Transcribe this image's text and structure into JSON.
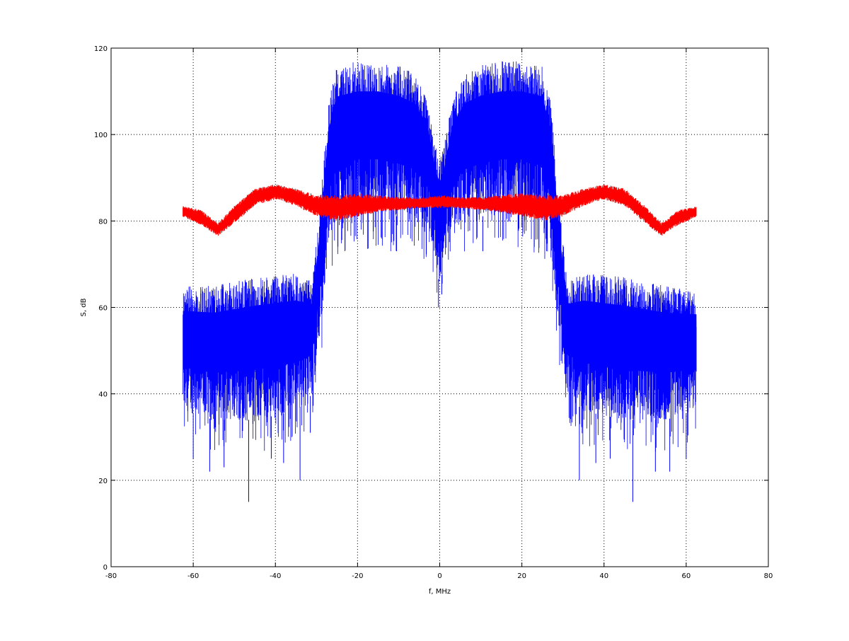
{
  "chart_data": {
    "type": "line",
    "title": "",
    "xlabel": "f, MHz",
    "ylabel": "S, dB",
    "xlim": [
      -80,
      80
    ],
    "ylim": [
      0,
      120
    ],
    "x_ticks": [
      -80,
      -60,
      -40,
      -20,
      0,
      20,
      40,
      60,
      80
    ],
    "y_ticks": [
      0,
      20,
      40,
      60,
      80,
      100,
      120
    ],
    "grid": true,
    "grid_style": "dotted",
    "legend": "none",
    "x_range_of_data": [
      -62.5,
      62.5
    ],
    "series": [
      {
        "color": "#0000ff",
        "style": "dense noisy spectrum",
        "envelope": {
          "x": [
            -62.5,
            -55,
            -45,
            -35,
            -31,
            -29,
            -27,
            -25,
            -20,
            -15,
            -10,
            -6,
            -3,
            -1,
            0,
            1,
            3,
            6,
            10,
            15,
            20,
            25,
            27,
            29,
            31,
            35,
            45,
            55,
            62.5
          ],
          "upper": [
            65,
            65,
            67,
            68,
            66,
            85,
            108,
            116,
            117,
            117,
            116,
            114,
            108,
            97,
            95,
            97,
            108,
            114,
            116,
            117,
            117,
            116,
            108,
            85,
            66,
            68,
            67,
            65,
            64
          ],
          "lower": [
            36,
            34,
            34,
            36,
            40,
            55,
            75,
            80,
            82,
            82,
            81,
            80,
            78,
            70,
            65,
            70,
            78,
            80,
            81,
            82,
            82,
            80,
            75,
            55,
            40,
            36,
            34,
            34,
            36
          ]
        },
        "spikes": [
          {
            "x": -60.0,
            "y": 25
          },
          {
            "x": -56.0,
            "y": 22
          },
          {
            "x": -52.5,
            "y": 23
          },
          {
            "x": -46.5,
            "y": 15
          },
          {
            "x": -41.0,
            "y": 25
          },
          {
            "x": -38.0,
            "y": 24
          },
          {
            "x": -34.0,
            "y": 20
          },
          {
            "x": -31.5,
            "y": 31
          },
          {
            "x": -10.5,
            "y": 73
          },
          {
            "x": -0.3,
            "y": 60
          },
          {
            "x": 0.5,
            "y": 63
          },
          {
            "x": 10.5,
            "y": 73
          },
          {
            "x": 34.0,
            "y": 20
          },
          {
            "x": 38.0,
            "y": 24
          },
          {
            "x": 41.5,
            "y": 25
          },
          {
            "x": 47.0,
            "y": 15
          },
          {
            "x": 52.5,
            "y": 22
          },
          {
            "x": 56.0,
            "y": 22
          },
          {
            "x": 60.0,
            "y": 25
          }
        ]
      },
      {
        "color": "#ff0000",
        "style": "noisy band",
        "envelope": {
          "x": [
            -62.5,
            -58,
            -54,
            -50,
            -45,
            -40,
            -35,
            -30,
            -25,
            -20,
            -15,
            -10,
            -5,
            0,
            5,
            10,
            15,
            20,
            25,
            30,
            35,
            40,
            45,
            50,
            54,
            58,
            62.5
          ],
          "upper": [
            83.5,
            82.5,
            79.5,
            83.5,
            87.5,
            88.5,
            87.5,
            86.0,
            86.0,
            86.5,
            86.0,
            85.5,
            85.5,
            86.0,
            85.5,
            85.5,
            86.0,
            86.5,
            86.0,
            86.0,
            87.5,
            88.5,
            87.5,
            83.5,
            79.5,
            82.5,
            83.5
          ],
          "lower": [
            81.0,
            79.0,
            76.5,
            79.5,
            83.5,
            85.0,
            83.5,
            81.0,
            80.0,
            81.0,
            82.0,
            82.5,
            83.0,
            83.0,
            83.0,
            82.5,
            82.0,
            81.0,
            80.0,
            81.0,
            83.5,
            85.0,
            83.5,
            79.5,
            76.5,
            79.0,
            81.0
          ]
        }
      }
    ]
  }
}
